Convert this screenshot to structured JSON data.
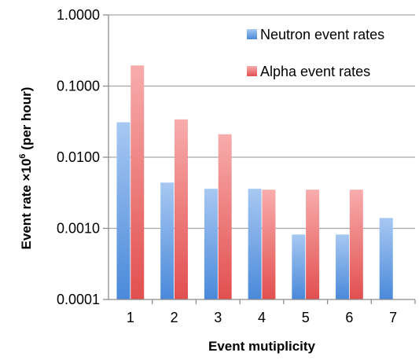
{
  "chart_data": {
    "type": "bar",
    "title": "",
    "xlabel": "Event mutiplicity",
    "ylabel": {
      "main": "Event rate ×10",
      "superscript": "6",
      "suffix": " (per hour)"
    },
    "yscale": "log",
    "ylim": [
      0.0001,
      1.0
    ],
    "yticks": [
      "0.0001",
      "0.0010",
      "0.0100",
      "0.1000",
      "1.0000"
    ],
    "categories": [
      "1",
      "2",
      "3",
      "4",
      "5",
      "6",
      "7"
    ],
    "grid": "horizontal",
    "legend_position": "top-right",
    "series": [
      {
        "name": "Neutron event rates",
        "color": "#4f8fdc",
        "values": [
          0.031,
          0.0044,
          0.0036,
          0.0036,
          0.00082,
          0.00082,
          0.0014
        ]
      },
      {
        "name": "Alpha event rates",
        "color": "#e55a5a",
        "values": [
          0.195,
          0.034,
          0.021,
          0.0035,
          0.0035,
          0.0035,
          null
        ]
      }
    ]
  }
}
